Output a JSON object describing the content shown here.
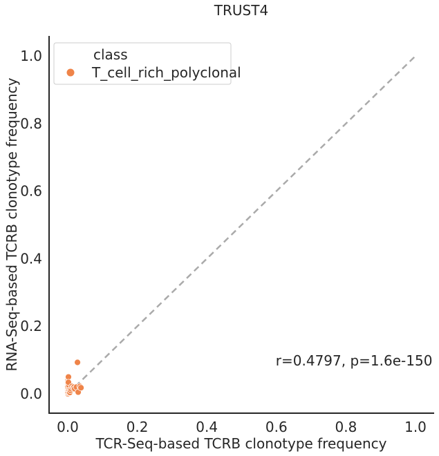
{
  "chart_data": {
    "type": "scatter",
    "title": "TRUST4",
    "xlabel": "TCR-Seq-based TCRB clonotype frequency",
    "ylabel": "RNA-Seq-based TCRB clonotype frequency",
    "xlim": [
      -0.055,
      1.055
    ],
    "ylim": [
      -0.055,
      1.055
    ],
    "x_ticks": [
      0.0,
      0.2,
      0.4,
      0.6,
      0.8,
      1.0
    ],
    "y_ticks": [
      0.0,
      0.2,
      0.4,
      0.6,
      0.8,
      1.0
    ],
    "x_tick_labels": [
      "0.0",
      "0.2",
      "0.4",
      "0.6",
      "0.8",
      "1.0"
    ],
    "y_tick_labels": [
      "0.0",
      "0.2",
      "0.4",
      "0.6",
      "0.8",
      "1.0"
    ],
    "grid": false,
    "legend": {
      "title": "class",
      "placement": "top-left",
      "entries": [
        "T_cell_rich_polyclonal"
      ]
    },
    "reference_line": {
      "x": [
        0,
        1
      ],
      "y": [
        0,
        1
      ],
      "style": "dashed",
      "color": "#aaaaaa"
    },
    "annotation": {
      "text": "r=0.4797, p=1.6e-150",
      "x": 0.6,
      "y": 0.1
    },
    "series": [
      {
        "name": "T_cell_rich_polyclonal",
        "color": "#ef8449",
        "points": [
          [
            0.0,
            0.0
          ],
          [
            0.0,
            0.003
          ],
          [
            0.0,
            0.006
          ],
          [
            0.001,
            0.01
          ],
          [
            0.0,
            0.013
          ],
          [
            0.001,
            0.016
          ],
          [
            0.0,
            0.02
          ],
          [
            0.0,
            0.024
          ],
          [
            0.001,
            0.028
          ],
          [
            0.0,
            0.032
          ],
          [
            0.0,
            0.036
          ],
          [
            0.001,
            0.04
          ],
          [
            0.0,
            0.044
          ],
          [
            0.001,
            0.048
          ],
          [
            0.002,
            0.05
          ],
          [
            0.003,
            0.005
          ],
          [
            0.004,
            0.012
          ],
          [
            0.005,
            0.018
          ],
          [
            0.003,
            0.026
          ],
          [
            0.002,
            0.034
          ],
          [
            0.006,
            0.004
          ],
          [
            0.008,
            0.01
          ],
          [
            0.01,
            0.015
          ],
          [
            0.012,
            0.022
          ],
          [
            0.015,
            0.018
          ],
          [
            0.018,
            0.02
          ],
          [
            0.02,
            0.015
          ],
          [
            0.025,
            0.02
          ],
          [
            0.03,
            0.005
          ],
          [
            0.035,
            0.022
          ],
          [
            0.038,
            0.018
          ],
          [
            0.028,
            0.093
          ]
        ]
      }
    ]
  }
}
